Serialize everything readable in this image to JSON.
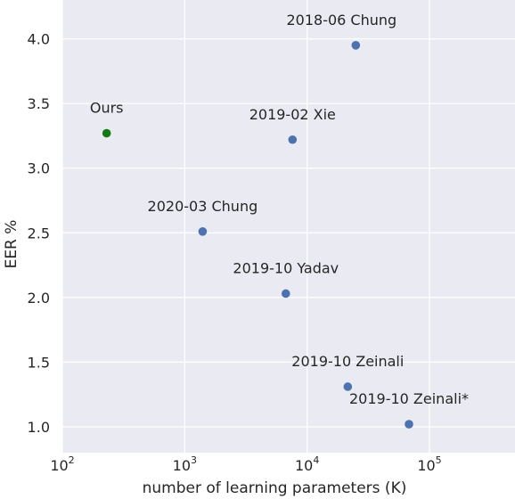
{
  "chart_data": {
    "type": "scatter",
    "xlabel": "number of learning parameters (K)",
    "ylabel": "EER %",
    "xscale": "log",
    "xlim": [
      100,
      500000
    ],
    "ylim": [
      0.8,
      4.3
    ],
    "grid": true,
    "background_color": "#eaeaf2",
    "grid_color": "#ffffff",
    "x_ticks": [
      {
        "value": 100,
        "base": "10",
        "exp": "2"
      },
      {
        "value": 1000,
        "base": "10",
        "exp": "3"
      },
      {
        "value": 10000,
        "base": "10",
        "exp": "4"
      },
      {
        "value": 100000,
        "base": "10",
        "exp": "5"
      }
    ],
    "y_ticks": [
      {
        "value": 1.0,
        "label": "1.0"
      },
      {
        "value": 1.5,
        "label": "1.5"
      },
      {
        "value": 2.0,
        "label": "2.0"
      },
      {
        "value": 2.5,
        "label": "2.5"
      },
      {
        "value": 3.0,
        "label": "3.0"
      },
      {
        "value": 3.5,
        "label": "3.5"
      },
      {
        "value": 4.0,
        "label": "4.0"
      }
    ],
    "points": [
      {
        "label": "Ours",
        "x": 230,
        "y": 3.27,
        "color": "#117a11",
        "label_pos": "above"
      },
      {
        "label": "2018-06 Chung",
        "x": 25000,
        "y": 3.95,
        "color": "#4c72b0",
        "label_pos": "above-left"
      },
      {
        "label": "2019-02  Xie",
        "x": 7600,
        "y": 3.22,
        "color": "#4c72b0",
        "label_pos": "above"
      },
      {
        "label": "2020-03 Chung",
        "x": 1400,
        "y": 2.51,
        "color": "#4c72b0",
        "label_pos": "above"
      },
      {
        "label": "2019-10 Yadav",
        "x": 6700,
        "y": 2.03,
        "color": "#4c72b0",
        "label_pos": "above"
      },
      {
        "label": "2019-10 Zeinali",
        "x": 21500,
        "y": 1.31,
        "color": "#4c72b0",
        "label_pos": "above"
      },
      {
        "label": "2019-10 Zeinali*",
        "x": 68000,
        "y": 1.02,
        "color": "#4c72b0",
        "label_pos": "above"
      }
    ]
  }
}
